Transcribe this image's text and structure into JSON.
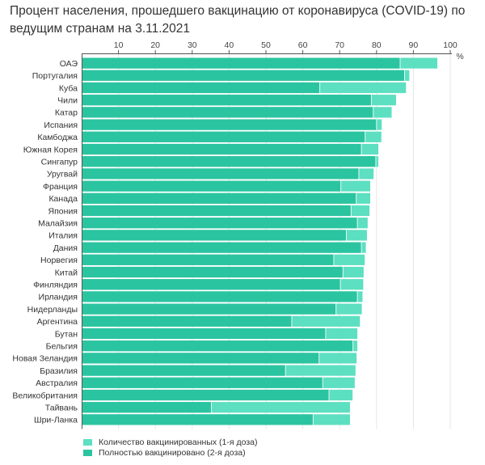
{
  "chart_data": {
    "type": "bar",
    "orientation": "horizontal",
    "stacked": "overlay",
    "title": "Процент населения, прошедшего вакцинацию от коронавируса (COVID-19) по ведущим странам на 3.11.2021",
    "xlabel": "",
    "ylabel": "",
    "unit_label": "%",
    "xlim": [
      0,
      100
    ],
    "xticks": [
      10,
      20,
      30,
      40,
      50,
      60,
      70,
      80,
      90,
      100
    ],
    "grid": true,
    "legend_position": "bottom-left",
    "colors": {
      "first_dose": "#5DDFC1",
      "full": "#2BC4A0",
      "axis": "#555555",
      "grid": "#e6e6e6"
    },
    "categories": [
      "ОАЭ",
      "Португалия",
      "Куба",
      "Чили",
      "Катар",
      "Испания",
      "Камбоджа",
      "Южная Корея",
      "Сингапур",
      "Уругвай",
      "Франция",
      "Канада",
      "Япония",
      "Малайзия",
      "Италия",
      "Дания",
      "Норвегия",
      "Китай",
      "Финляндия",
      "Ирландия",
      "Нидерланды",
      "Аргентина",
      "Бутан",
      "Бельгия",
      "Новая Зеландия",
      "Бразилия",
      "Австралия",
      "Великобритания",
      "Тайвань",
      "Шри-Ланка"
    ],
    "series": [
      {
        "name": "Количество вакцинированных (1-я доза)",
        "key": "first_dose",
        "values": [
          96.5,
          88.9,
          88.0,
          85.3,
          84.1,
          81.4,
          81.3,
          80.5,
          80.5,
          79.2,
          78.3,
          78.3,
          78.1,
          77.6,
          77.4,
          77.1,
          76.8,
          76.5,
          76.4,
          76.2,
          76.0,
          75.5,
          74.8,
          74.8,
          74.6,
          74.3,
          74.1,
          73.5,
          72.8,
          72.8
        ]
      },
      {
        "name": "Полностью вакцинировано (2-я доза)",
        "key": "full",
        "values": [
          86.3,
          87.5,
          64.5,
          78.5,
          79.0,
          79.9,
          76.8,
          75.8,
          79.7,
          75.1,
          70.2,
          74.4,
          73.0,
          74.7,
          71.7,
          75.8,
          68.3,
          70.8,
          70.1,
          74.7,
          68.9,
          56.9,
          66.1,
          73.5,
          64.3,
          55.2,
          65.3,
          67.0,
          35.1,
          62.7
        ]
      }
    ]
  }
}
